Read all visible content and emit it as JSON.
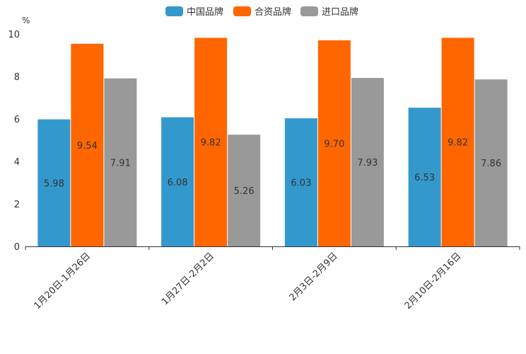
{
  "chart_data": {
    "type": "bar",
    "title": "",
    "ylabel": "%",
    "xlabel": "",
    "ylim": [
      0,
      10
    ],
    "yticks": [
      0,
      2,
      4,
      6,
      8,
      10
    ],
    "categories": [
      "1月20日-1月26日",
      "1月27日-2月2日",
      "2月3日-2月9日",
      "2月10日-2月16日"
    ],
    "series": [
      {
        "name": "中国品牌",
        "color": "#3399cc",
        "values": [
          5.98,
          6.08,
          6.03,
          6.53
        ]
      },
      {
        "name": "合资品牌",
        "color": "#ff6600",
        "values": [
          9.54,
          9.82,
          9.7,
          9.82
        ]
      },
      {
        "name": "进口品牌",
        "color": "#999999",
        "values": [
          7.91,
          5.26,
          7.93,
          7.86
        ]
      }
    ],
    "legend_position": "top-center",
    "grid": false
  }
}
